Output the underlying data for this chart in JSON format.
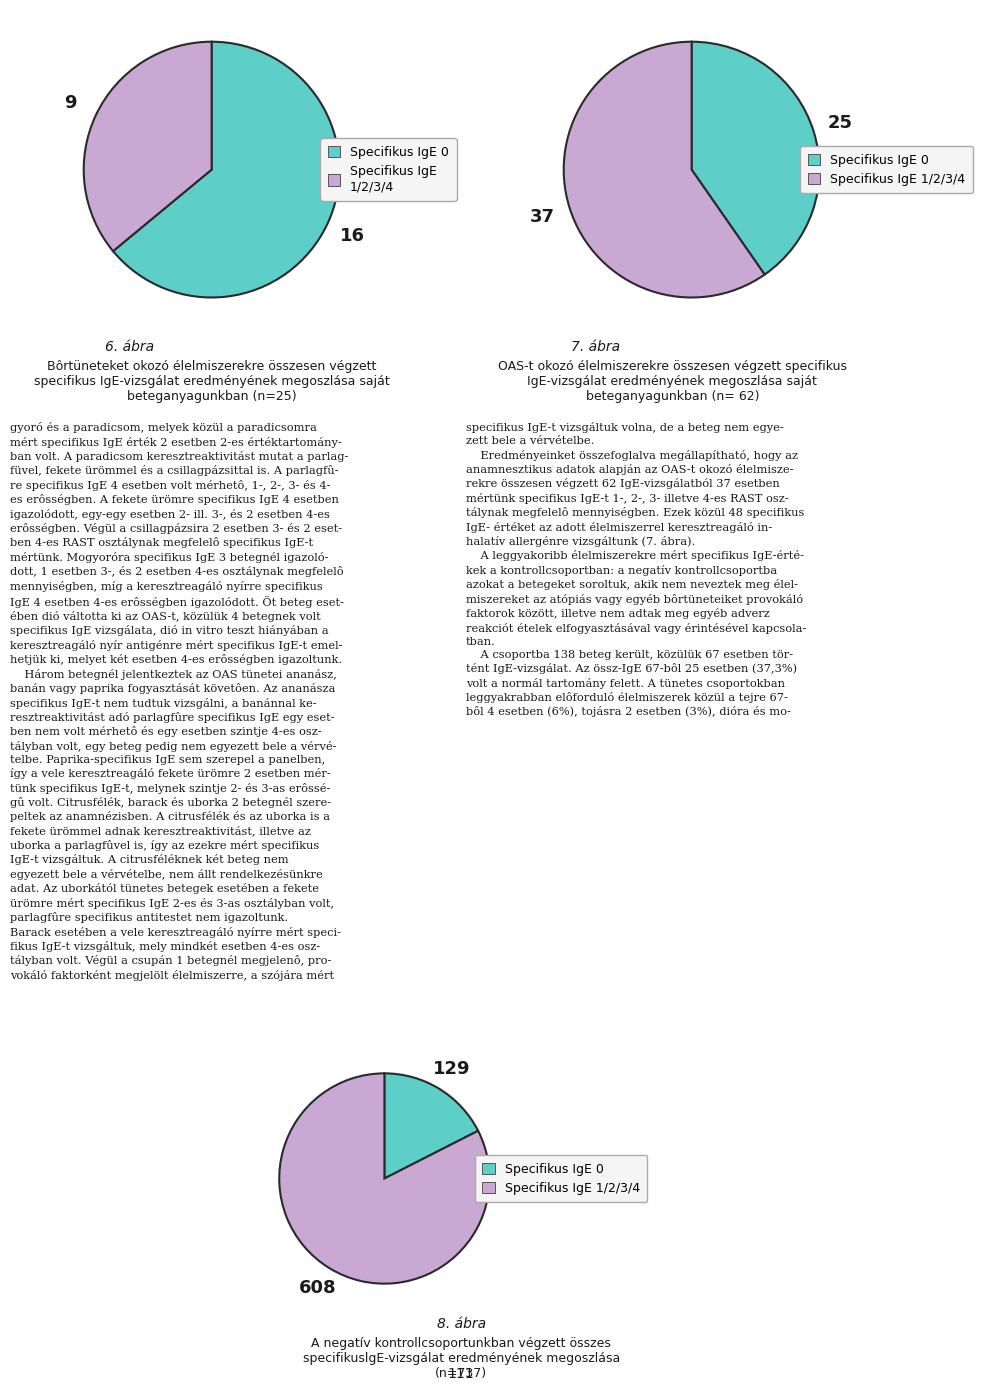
{
  "chart1": {
    "fig_label": "6. ábra",
    "subtitle": "Bôrtüneteket okozó élelmiszerekre összesen végzett\nspecifikus IgE-vizsgálat eredményének megoszlása saját\nbeteganyagunkban (n=25)",
    "values": [
      16,
      9
    ],
    "labels": [
      "16",
      "9"
    ],
    "colors": [
      "#5ecec8",
      "#c9a8d4"
    ],
    "legend_labels": [
      "Specifikus IgE 0",
      "Specifikus IgE\n1/2/3/4"
    ],
    "startangle": 90
  },
  "chart2": {
    "fig_label": "7. ábra",
    "subtitle": "OAS-t okozó élelmiszerekre összesen végzett specifikus\nIgE-vizsgálat eredményének megoszlása saját\nbeteganyagunkban (n= 62)",
    "values": [
      25,
      37
    ],
    "labels": [
      "25",
      "37"
    ],
    "colors": [
      "#5ecec8",
      "#c9a8d4"
    ],
    "legend_labels": [
      "Specifikus IgE 0",
      "Specifikus IgE 1/2/3/4"
    ],
    "startangle": 90
  },
  "chart3": {
    "fig_label": "8. ábra",
    "subtitle": "A negatív kontrollcsoportunkban végzett összes\nspecifikuslgE-vizsgálat eredményének megoszlása\n(n=737)",
    "values": [
      129,
      608
    ],
    "labels": [
      "129",
      "608"
    ],
    "colors": [
      "#5ecec8",
      "#c9a8d4"
    ],
    "legend_labels": [
      "Specifikus IgE 0",
      "Specifikus IgE 1/2/3/4"
    ],
    "startangle": 90
  },
  "bg_color": "#d0d0d0",
  "page_bg": "#ffffff",
  "text_color": "#1a1a1a",
  "label_fontsize": 13,
  "legend_fontsize": 9,
  "caption_fontsize": 10,
  "subtitle_fontsize": 9,
  "body_fontsize": 8.2,
  "body_left": "gyoró és a paradicsom, melyek közül a paradicsomra\nmért specifikus IgE érték 2 esetben 2-es értéktartomány-\nban volt. A paradicsom keresztreaktivitást mutat a parlag-\nfüvel, fekete ürömmel és a csillagpázsittal is. A parlagfû-\nre specifikus IgE 4 esetben volt mérhetô, 1-, 2-, 3- és 4-\nes erôsségben. A fekete ürömre specifikus IgE 4 esetben\nigazolódott, egy-egy esetben 2- ill. 3-, és 2 esetben 4-es\nerôsségben. Végül a csillagpázsira 2 esetben 3- és 2 eset-\nben 4-es RAST osztálynak megfelelô specifikus IgE-t\nmértünk. Mogyoróra specifikus IgE 3 betegnél igazoló-\ndott, 1 esetben 3-, és 2 esetben 4-es osztálynak megfelelô\nmennyiségben, míg a keresztreagáló nyírre specifikus\nIgE 4 esetben 4-es erôsségben igazolódott. Öt beteg eset-\nében dió váltotta ki az OAS-t, közülük 4 betegnek volt\nspecifikus IgE vizsgálata, dió in vitro teszt hiányában a\nkeresztreagáló nyír antigénre mért specifikus IgE-t emel-\nhetjük ki, melyet két esetben 4-es erôsségben igazoltunk.\n    Három betegnél jelentkeztek az OAS tünetei ananász,\nbanán vagy paprika fogyasztását követôen. Az ananásza\nspecifikus IgE-t nem tudtuk vizsgálni, a banánnal ke-\nresztreaktivitást adó parlagfûre specifikus IgE egy eset-\nben nem volt mérhetô és egy esetben szintje 4-es osz-\ntályban volt, egy beteg pedig nem egyezett bele a vérvé-\ntelbe. Paprika-specifikus IgE sem szerepel a panelben,\nígy a vele keresztreagáló fekete ürömre 2 esetben mér-\ntünk specifikus IgE-t, melynek szintje 2- és 3-as erôssé-\ngû volt. Citrusfélék, barack és uborka 2 betegnél szere-\npeltek az anamnézisben. A citrusfélék és az uborka is a\nfekete ürömmel adnak keresztreaktivitást, illetve az\nuborka a parlagfûvel is, így az ezekre mért specifikus\nIgE-t vizsgáltuk. A citrusféléknek két beteg nem\negyezett bele a vérvételbe, nem állt rendelkezésünkre\nadat. Az uborkától tünetes betegek esetében a fekete\nürömre mért specifikus IgE 2-es és 3-as osztályban volt,\nparlagfûre specifikus antitestet nem igazoltunk.\nBarack esetében a vele keresztreagáló nyírre mért speci-\nfikus IgE-t vizsgáltuk, mely mindkét esetben 4-es osz-\ntályban volt. Végül a csupán 1 betegnél megjelenô, pro-\nvokáló faktorként megjelölt élelmiszerre, a szójára mért",
  "body_right": "specifikus IgE-t vizsgáltuk volna, de a beteg nem egye-\nzett bele a vérvételbe.\n    Eredményeinket összefoglalva megállapítható, hogy az\nanamnesztikus adatok alapján az OAS-t okozó élelmisze-\nrekre összesen végzett 62 IgE-vizsgálatból 37 esetben\nmértünk specifikus IgE-t 1-, 2-, 3- illetve 4-es RAST osz-\ntálynak megfelelô mennyiségben. Ezek közül 48 specifikus\nIgE- értéket az adott élelmiszerrel keresztreagáló in-\nhalatív allergénre vizsgáltunk (7. ábra).\n    A leggyakoribb élelmiszerekre mért specifikus IgE-érté-\nkek a kontrollcsoportban: a negatív kontrollcsoportba\nazokat a betegeket soroltuk, akik nem neveztek meg élel-\nmiszereket az atópiás vagy egyéb bôrtüneteiket provokáló\nfaktorok között, illetve nem adtak meg egyéb adverz\nreakciót ételek elfogyasztásával vagy érintésével kapcsola-\ntban.\n    A csoportba 138 beteg került, közülük 67 esetben tör-\ntént IgE-vizsgálat. Az össz-IgE 67-bôl 25 esetben (37,3%)\nvolt a normál tartomány felett. A tünetes csoportokban\nleggyakrabban elôforduló élelmiszerek közül a tejre 67-\nbôl 4 esetben (6%), tojásra 2 esetben (3%), dióra és mo-",
  "page_number": "111"
}
